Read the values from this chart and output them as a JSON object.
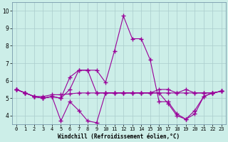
{
  "xlabel": "Windchill (Refroidissement éolien,°C)",
  "xlim": [
    -0.5,
    23.5
  ],
  "ylim": [
    3.5,
    10.5
  ],
  "yticks": [
    4,
    5,
    6,
    7,
    8,
    9,
    10
  ],
  "xticks": [
    0,
    1,
    2,
    3,
    4,
    5,
    6,
    7,
    8,
    9,
    10,
    11,
    12,
    13,
    14,
    15,
    16,
    17,
    18,
    19,
    20,
    21,
    22,
    23
  ],
  "bg_color": "#cceee8",
  "line_color": "#990099",
  "grid_color": "#aacccc",
  "lines": [
    {
      "x": [
        0,
        1,
        2,
        3,
        4,
        5,
        6,
        7,
        8,
        9,
        10,
        11,
        12,
        13,
        14,
        15,
        16,
        17,
        18,
        19,
        20,
        21,
        22,
        23
      ],
      "y": [
        5.5,
        5.3,
        5.1,
        5.1,
        5.2,
        5.2,
        5.25,
        5.3,
        5.3,
        5.3,
        5.3,
        5.3,
        5.3,
        5.3,
        5.3,
        5.3,
        5.3,
        5.3,
        5.3,
        5.3,
        5.3,
        5.3,
        5.3,
        5.4
      ]
    },
    {
      "x": [
        0,
        1,
        2,
        3,
        4,
        5,
        6,
        7,
        8,
        9,
        10,
        11,
        12,
        13,
        14,
        15,
        16,
        17,
        18,
        19,
        20,
        21,
        22,
        23
      ],
      "y": [
        5.5,
        5.3,
        5.1,
        5.0,
        5.1,
        5.0,
        6.2,
        6.6,
        6.6,
        5.3,
        5.3,
        5.3,
        5.3,
        5.3,
        5.3,
        5.3,
        5.5,
        5.5,
        5.3,
        5.5,
        5.3,
        5.3,
        5.3,
        5.4
      ]
    },
    {
      "x": [
        0,
        1,
        2,
        3,
        4,
        5,
        6,
        7,
        8,
        9,
        10,
        11,
        12,
        13,
        14,
        15,
        16,
        17,
        18,
        19,
        20,
        21,
        22,
        23
      ],
      "y": [
        5.5,
        5.3,
        5.1,
        5.0,
        5.1,
        3.7,
        4.8,
        4.3,
        3.7,
        3.6,
        5.3,
        5.3,
        5.3,
        5.3,
        5.3,
        5.3,
        5.3,
        4.7,
        4.0,
        3.8,
        4.1,
        5.1,
        5.3,
        5.4
      ]
    },
    {
      "x": [
        0,
        1,
        2,
        3,
        4,
        5,
        6,
        7,
        8,
        9,
        10,
        11,
        12,
        13,
        14,
        15,
        16,
        17,
        18,
        19,
        20,
        21,
        22,
        23
      ],
      "y": [
        5.5,
        5.3,
        5.1,
        5.0,
        5.1,
        5.0,
        5.5,
        6.6,
        6.6,
        6.6,
        5.9,
        7.7,
        9.7,
        8.4,
        8.4,
        7.2,
        4.8,
        4.8,
        4.1,
        3.8,
        4.3,
        5.1,
        5.3,
        5.4
      ]
    }
  ]
}
